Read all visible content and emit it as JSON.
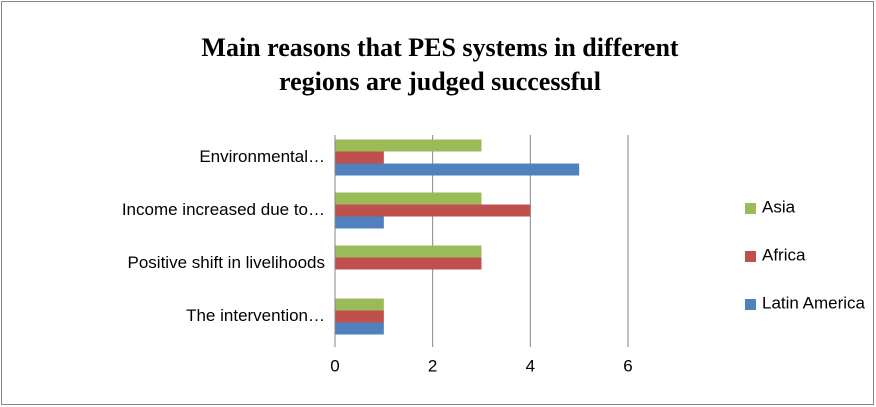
{
  "chart_data": {
    "type": "hbar",
    "title": [
      "Main reasons that PES systems in different",
      "regions are judged successful"
    ],
    "categories": [
      "Environmental…",
      "Income increased due to…",
      "Positive shift in livelihoods",
      "The intervention…"
    ],
    "series": [
      {
        "name": "Asia",
        "color": "#9bbb59",
        "values": [
          3,
          3,
          3,
          1
        ]
      },
      {
        "name": "Africa",
        "color": "#c0504d",
        "values": [
          1,
          4,
          3,
          1
        ]
      },
      {
        "name": "Latin America",
        "color": "#4f81bd",
        "values": [
          5,
          1,
          0,
          1
        ]
      }
    ],
    "xlim": [
      0,
      6
    ],
    "xticks": [
      0,
      2,
      4,
      6
    ],
    "grid": true,
    "legend": "right"
  }
}
